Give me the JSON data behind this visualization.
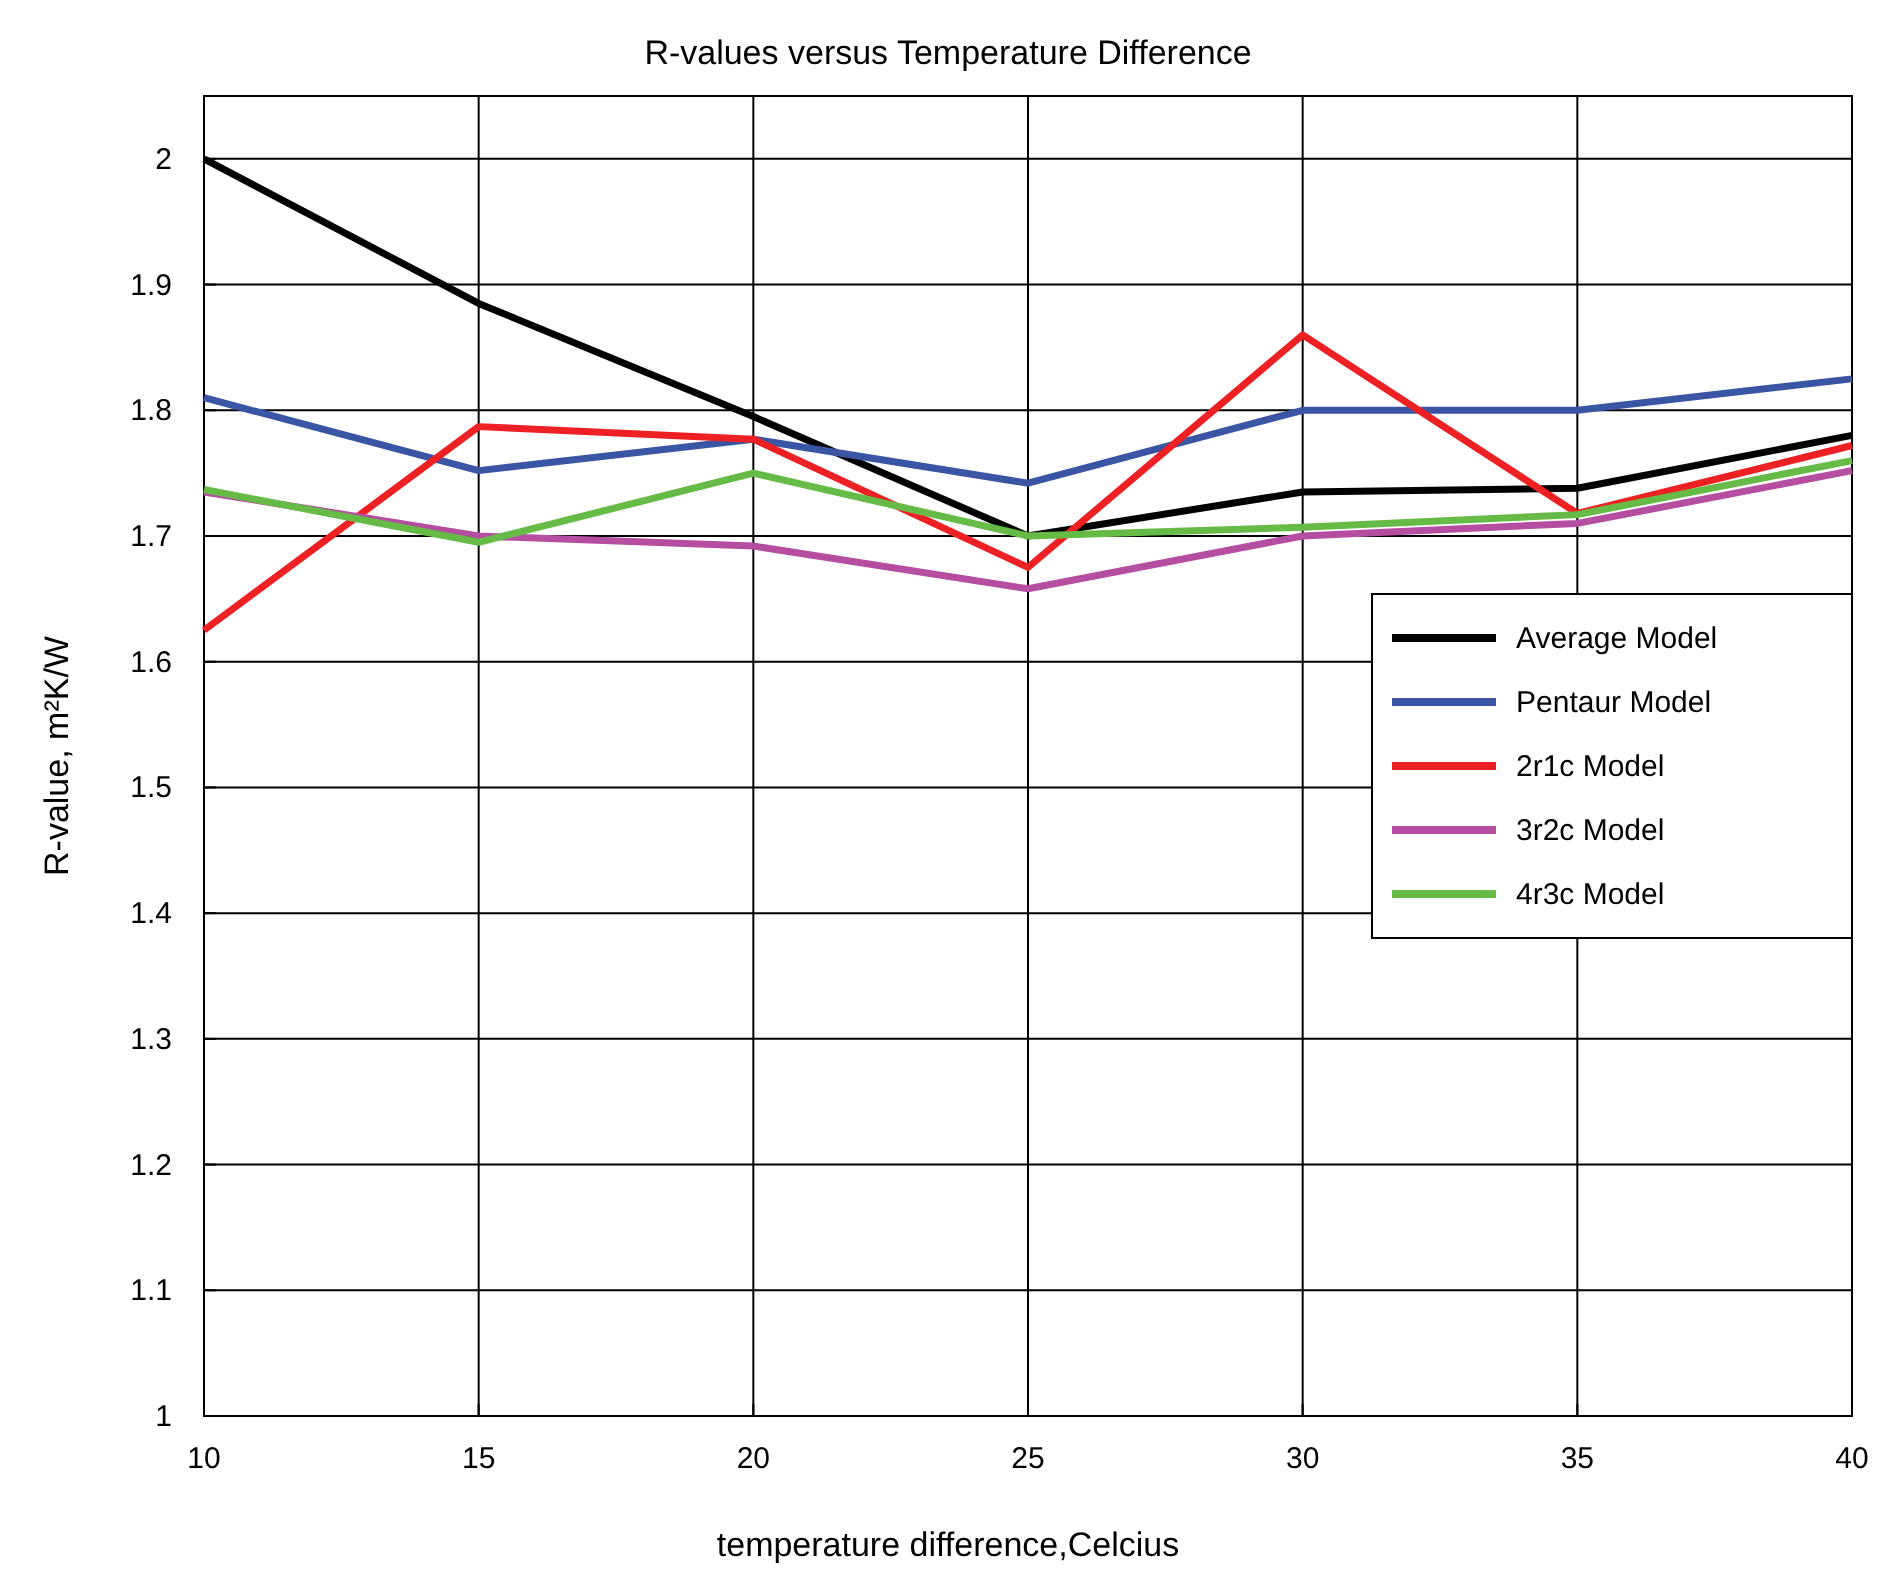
{
  "chart_data": {
    "type": "line",
    "title": "R-values versus Temperature Difference",
    "xlabel": "temperature difference,Celcius",
    "ylabel": "R-value, m²K/W",
    "x": [
      10,
      15,
      20,
      25,
      30,
      35,
      40
    ],
    "xlim": [
      10,
      40
    ],
    "xticks": [
      10,
      15,
      20,
      25,
      30,
      35,
      40
    ],
    "ylim": [
      1,
      2.05
    ],
    "yticks": [
      1,
      1.1,
      1.2,
      1.3,
      1.4,
      1.5,
      1.6,
      1.7,
      1.8,
      1.9,
      2
    ],
    "grid": true,
    "legend": "right",
    "marker": "none",
    "line_style": "solid",
    "series": [
      {
        "name": "Average Model",
        "color": "#000000",
        "values": [
          2.0,
          1.885,
          1.795,
          1.7,
          1.735,
          1.738,
          1.78
        ]
      },
      {
        "name": "Pentaur Model",
        "color": "#3a55a4",
        "values": [
          1.81,
          1.752,
          1.777,
          1.742,
          1.8,
          1.8,
          1.825
        ]
      },
      {
        "name": "2r1c Model",
        "color": "#ed2024",
        "values": [
          1.625,
          1.787,
          1.777,
          1.675,
          1.86,
          1.718,
          1.772
        ]
      },
      {
        "name": "3r2c Model",
        "color": "#b54ea0",
        "values": [
          1.735,
          1.7,
          1.692,
          1.658,
          1.7,
          1.71,
          1.752
        ]
      },
      {
        "name": "4r3c Model",
        "color": "#66bb46",
        "values": [
          1.737,
          1.695,
          1.75,
          1.7,
          1.707,
          1.717,
          1.76
        ]
      }
    ]
  }
}
